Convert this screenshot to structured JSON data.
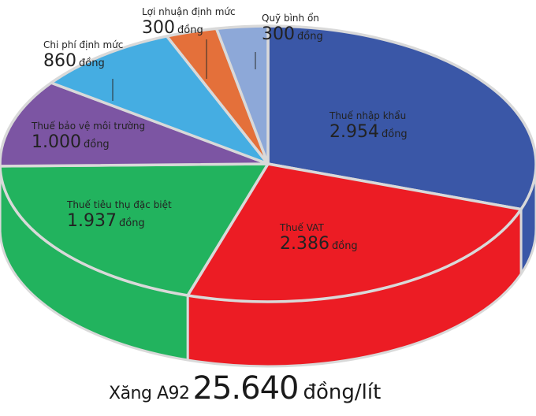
{
  "chart_data": {
    "type": "pie",
    "title": "",
    "slices": [
      {
        "label": "Thuế nhập khẩu",
        "value": 2954,
        "value_text": "2.954",
        "unit": "đồng",
        "color": "#3a57a7",
        "dark": "#2a4184"
      },
      {
        "label": "Thuế VAT",
        "value": 2386,
        "value_text": "2.386",
        "unit": "đồng",
        "color": "#ec1c24",
        "dark": "#c6141b"
      },
      {
        "label": "Thuế tiêu thụ đặc biệt",
        "value": 1937,
        "value_text": "1.937",
        "unit": "đồng",
        "color": "#22b35e",
        "dark": "#199049"
      },
      {
        "label": "Thuế bảo vệ môi trường",
        "value": 1000,
        "value_text": "1.000",
        "unit": "đồng",
        "color": "#7c55a3",
        "dark": "#5f3f82"
      },
      {
        "label": "Chi phí định mức",
        "value": 860,
        "value_text": "860",
        "unit": "đồng",
        "color": "#45ade2",
        "dark": "#2f8fc0"
      },
      {
        "label": "Lợi nhuận định mức",
        "value": 300,
        "value_text": "300",
        "unit": "đồng",
        "color": "#e4703a",
        "dark": "#c0592a"
      },
      {
        "label": "Quỹ bình ổn",
        "value": 300,
        "value_text": "300",
        "unit": "đồng",
        "color": "#8da8d8",
        "dark": "#6f8dc0"
      }
    ],
    "total": {
      "fuel": "Xăng A92",
      "price": "25.640",
      "unit": "đồng/lít"
    }
  }
}
